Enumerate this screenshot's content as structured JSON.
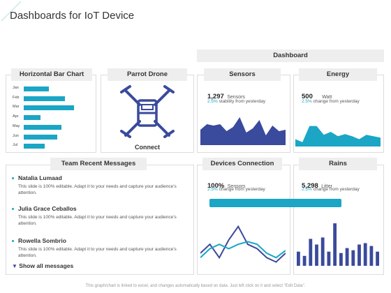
{
  "page": {
    "title": "Dashboards for IoT Device"
  },
  "dashboard_header": "Dashboard",
  "horizontal_bar_chart": {
    "header": "Horizontal  Bar Chart",
    "chart_data": {
      "type": "bar",
      "orientation": "horizontal",
      "categories": [
        "Jan",
        "Feb",
        "Mar",
        "Apr",
        "May",
        "Jun",
        "Jul"
      ],
      "values": [
        40,
        66,
        80,
        27,
        60,
        53,
        33
      ],
      "xlim": [
        0,
        100
      ],
      "color": "#1aa6c4"
    }
  },
  "parrot_drone": {
    "header": "Parrot Drone",
    "connect_label": "Connect",
    "icon": "drone-icon",
    "icon_color": "#3a4a9c"
  },
  "sensors": {
    "header": "Sensors",
    "value": "1,297",
    "unit": "Sensors",
    "change_pct": "2.5%",
    "change_text": "stability from yesterday",
    "chart_data": {
      "type": "area",
      "values": [
        22,
        30,
        28,
        30,
        20,
        26,
        40,
        18,
        24,
        36,
        14,
        28,
        20,
        22
      ],
      "ylim": [
        0,
        50
      ],
      "color": "#3a4a9c"
    }
  },
  "energy": {
    "header": "Energy",
    "value": "500",
    "unit": "Watt",
    "change_pct": "2.5%",
    "change_text": "change from yesterday",
    "chart_data": {
      "type": "area",
      "values": [
        10,
        6,
        28,
        28,
        16,
        20,
        14,
        17,
        14,
        10,
        16,
        14,
        12
      ],
      "ylim": [
        0,
        40
      ],
      "color": "#1aa6c4"
    }
  },
  "team_messages": {
    "header": "Team Recent Messages",
    "messages": [
      {
        "name": "Natalia Lumaad",
        "text": "This slide is 100% editable. Adapt it to your needs and capture your audience's attention."
      },
      {
        "name": "Julia Grace Ceballos",
        "text": "This slide is 100% editable. Adapt it to your needs and capture your audience's attention."
      },
      {
        "name": "Rowella Sombrio",
        "text": "This slide is 100% editable. Adapt it to your needs and capture your audience's attention."
      }
    ],
    "show_all_label": "Show all messages"
  },
  "devices_connection": {
    "header": "Devices Connection",
    "value": "100%",
    "unit": "Sensors",
    "change_pct": "2.5%",
    "change_text": "change from yesterday",
    "chart_data": {
      "type": "line",
      "series": [
        {
          "values": [
            15,
            25,
            10,
            30,
            45,
            25,
            20,
            10,
            5,
            15
          ],
          "color": "#3a4a9c"
        },
        {
          "values": [
            10,
            20,
            25,
            20,
            25,
            28,
            25,
            15,
            10,
            18
          ],
          "color": "#1aa6c4"
        }
      ],
      "ylim": [
        0,
        55
      ]
    }
  },
  "rains": {
    "header": "Rains",
    "value": "5,298",
    "unit": "Litter",
    "change_pct": "2.5%",
    "change_text": "change from yesterday",
    "progress": 0.82,
    "chart_data": {
      "type": "bar",
      "values": [
        20,
        14,
        38,
        30,
        40,
        20,
        60,
        18,
        25,
        22,
        30,
        32,
        28,
        20
      ],
      "ylim": [
        0,
        65
      ],
      "color": "#3a4a9c"
    }
  },
  "footer": "This graph/chart is linked to excel, and changes automatically based on data. Just left click on it and select \"Edit Data\"."
}
